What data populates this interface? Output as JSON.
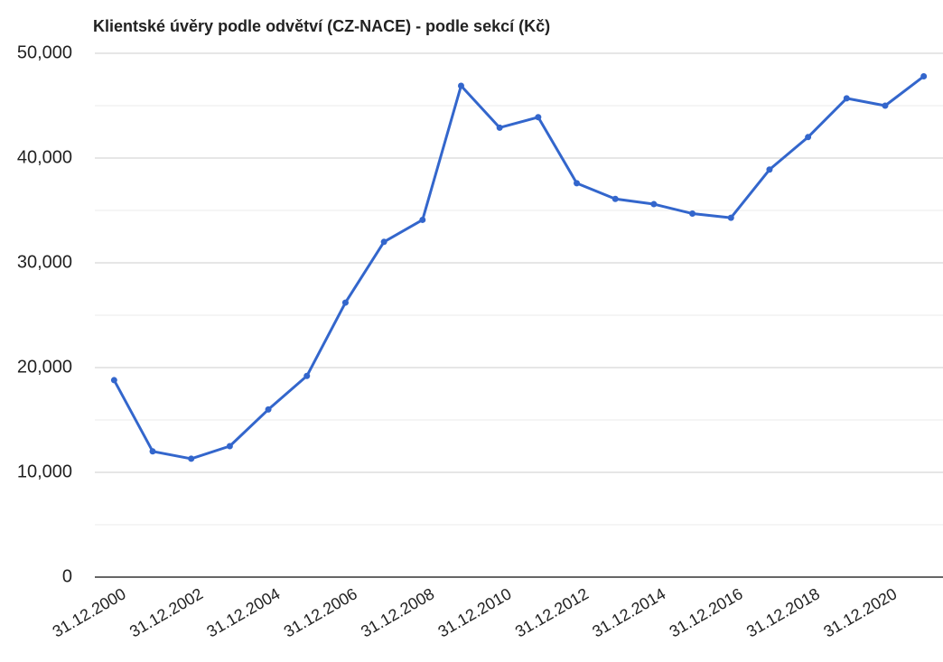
{
  "chart_data": {
    "type": "line",
    "title": "Klientské úvěry podle odvětví (CZ-NACE) - podle sekcí (Kč)",
    "categories": [
      "31.12.2000",
      null,
      "31.12.2002",
      null,
      "31.12.2004",
      null,
      "31.12.2006",
      null,
      "31.12.2008",
      null,
      "31.12.2010",
      null,
      "31.12.2012",
      null,
      "31.12.2014",
      null,
      "31.12.2016",
      null,
      "31.12.2018",
      null,
      "31.12.2020",
      null
    ],
    "values": [
      18800,
      12000,
      11300,
      12500,
      16000,
      19200,
      26200,
      32000,
      34100,
      46900,
      42900,
      43900,
      37600,
      36100,
      35600,
      34700,
      34300,
      38900,
      42000,
      45700,
      45000,
      47800
    ],
    "color": "#3366cc",
    "ylim": [
      0,
      50000
    ],
    "yticks": [
      0,
      {
        "value": 10000,
        "label": "10,000"
      },
      {
        "value": 20000,
        "label": "20,000"
      },
      {
        "value": 30000,
        "label": "30,000"
      },
      {
        "value": 40000,
        "label": "40,000"
      },
      {
        "value": 50000,
        "label": "50,000"
      }
    ],
    "minor_yticks": [
      5000,
      15000,
      25000,
      35000,
      45000
    ],
    "grid": true
  }
}
